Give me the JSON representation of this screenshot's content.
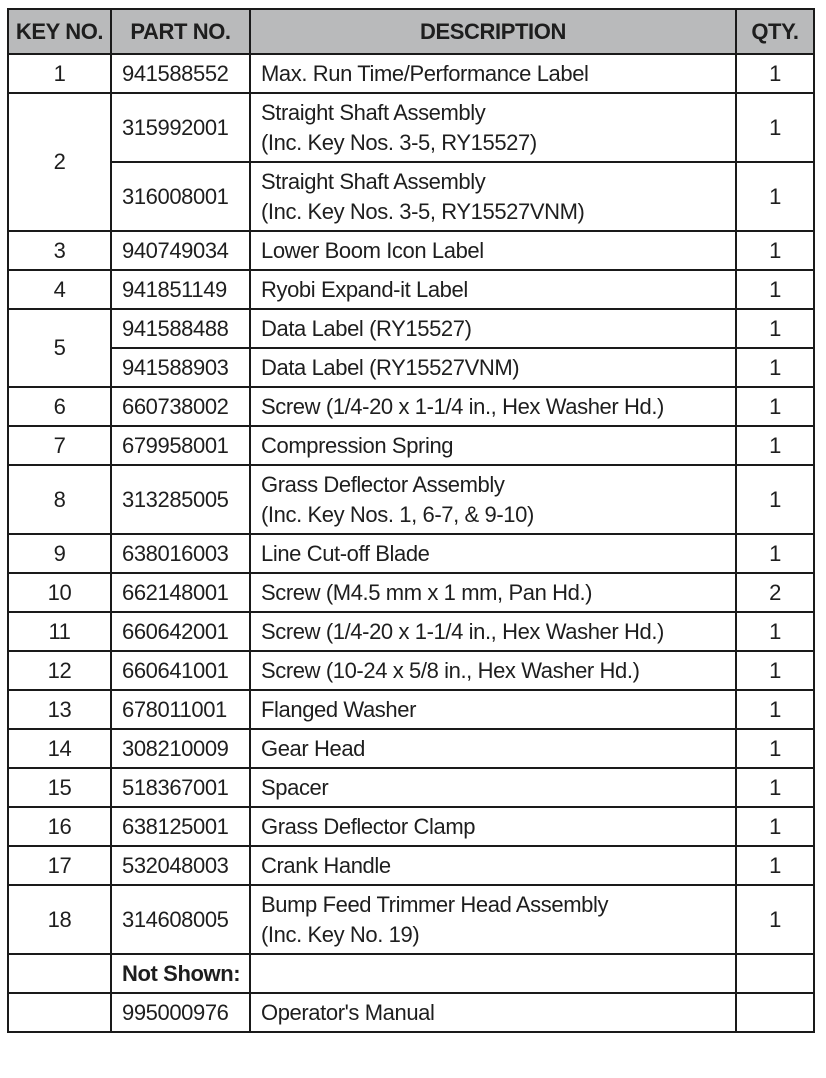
{
  "headers": {
    "key": "KEY NO.",
    "part": "PART NO.",
    "description": "DESCRIPTION",
    "qty": "QTY."
  },
  "rows": [
    {
      "key": "1",
      "part": "941588552",
      "desc": [
        "Max. Run Time/Performance Label"
      ],
      "qty": "1"
    },
    {
      "key": "2",
      "part": "315992001",
      "desc": [
        "Straight Shaft Assembly",
        "(Inc. Key Nos. 3-5, RY15527)"
      ],
      "qty": "1"
    },
    {
      "key": "",
      "part": "316008001",
      "desc": [
        "Straight Shaft Assembly",
        "(Inc. Key Nos. 3-5, RY15527VNM)"
      ],
      "qty": "1"
    },
    {
      "key": "3",
      "part": "940749034",
      "desc": [
        "Lower Boom Icon Label"
      ],
      "qty": "1"
    },
    {
      "key": "4",
      "part": "941851149",
      "desc": [
        "Ryobi Expand-it Label"
      ],
      "qty": "1"
    },
    {
      "key": "5",
      "part": "941588488",
      "desc": [
        "Data Label (RY15527)"
      ],
      "qty": "1"
    },
    {
      "key": "",
      "part": "941588903",
      "desc": [
        "Data Label (RY15527VNM)"
      ],
      "qty": "1"
    },
    {
      "key": "6",
      "part": "660738002",
      "desc": [
        "Screw (1/4-20 x 1-1/4 in., Hex Washer Hd.)"
      ],
      "qty": "1"
    },
    {
      "key": "7",
      "part": "679958001",
      "desc": [
        "Compression Spring"
      ],
      "qty": "1"
    },
    {
      "key": "8",
      "part": "313285005",
      "desc": [
        "Grass Deflector Assembly",
        "(Inc. Key Nos. 1, 6-7, & 9-10)"
      ],
      "qty": "1"
    },
    {
      "key": "9",
      "part": "638016003",
      "desc": [
        "Line Cut-off Blade"
      ],
      "qty": "1"
    },
    {
      "key": "10",
      "part": "662148001",
      "desc": [
        "Screw (M4.5 mm x 1 mm, Pan Hd.)"
      ],
      "qty": "2"
    },
    {
      "key": "11",
      "part": "660642001",
      "desc": [
        "Screw (1/4-20 x 1-1/4 in., Hex Washer Hd.)"
      ],
      "qty": "1"
    },
    {
      "key": "12",
      "part": "660641001",
      "desc": [
        "Screw (10-24 x 5/8 in., Hex Washer Hd.)"
      ],
      "qty": "1"
    },
    {
      "key": "13",
      "part": "678011001",
      "desc": [
        "Flanged Washer"
      ],
      "qty": "1"
    },
    {
      "key": "14",
      "part": "308210009",
      "desc": [
        "Gear Head"
      ],
      "qty": "1"
    },
    {
      "key": "15",
      "part": "518367001",
      "desc": [
        "Spacer"
      ],
      "qty": "1"
    },
    {
      "key": "16",
      "part": "638125001",
      "desc": [
        "Grass Deflector Clamp"
      ],
      "qty": "1"
    },
    {
      "key": "17",
      "part": "532048003",
      "desc": [
        "Crank Handle"
      ],
      "qty": "1"
    },
    {
      "key": "18",
      "part": "314608005",
      "desc": [
        "Bump Feed Trimmer Head Assembly",
        "(Inc. Key No. 19)"
      ],
      "qty": "1"
    },
    {
      "key": "",
      "part": "Not Shown:",
      "desc": [
        ""
      ],
      "qty": "",
      "bold": true
    },
    {
      "key": "",
      "part": "995000976",
      "desc": [
        "Operator's Manual"
      ],
      "qty": ""
    }
  ]
}
